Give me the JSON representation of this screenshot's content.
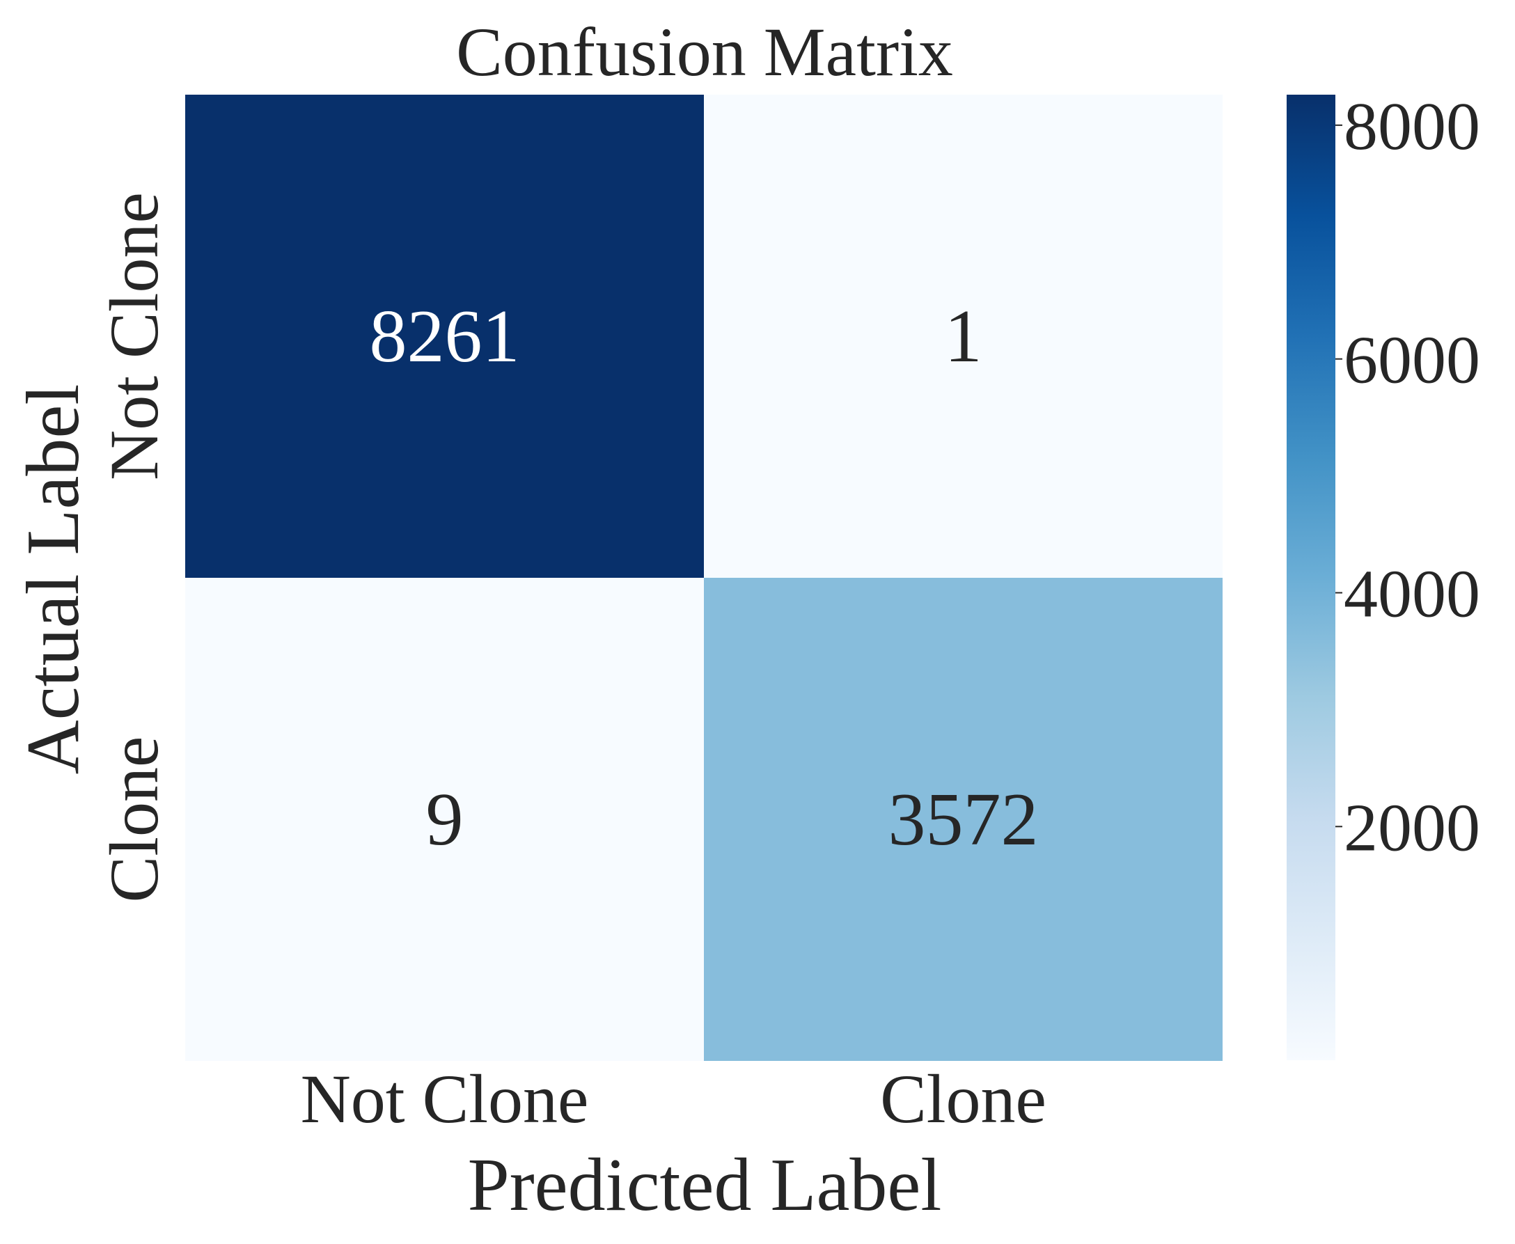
{
  "chart_data": {
    "type": "heatmap",
    "title": "Confusion Matrix",
    "xlabel": "Predicted Label",
    "ylabel": "Actual Label",
    "x_categories": [
      "Not Clone",
      "Clone"
    ],
    "y_categories": [
      "Not Clone",
      "Clone"
    ],
    "values": [
      [
        8261,
        1
      ],
      [
        9,
        3572
      ]
    ],
    "colorbar": {
      "ticks": [
        2000,
        4000,
        6000,
        8000
      ],
      "range": [
        1,
        8261
      ],
      "colormap": "Blues",
      "low_color": "#f7fbff",
      "high_color": "#08306b"
    },
    "grid": false,
    "legend": "none"
  }
}
